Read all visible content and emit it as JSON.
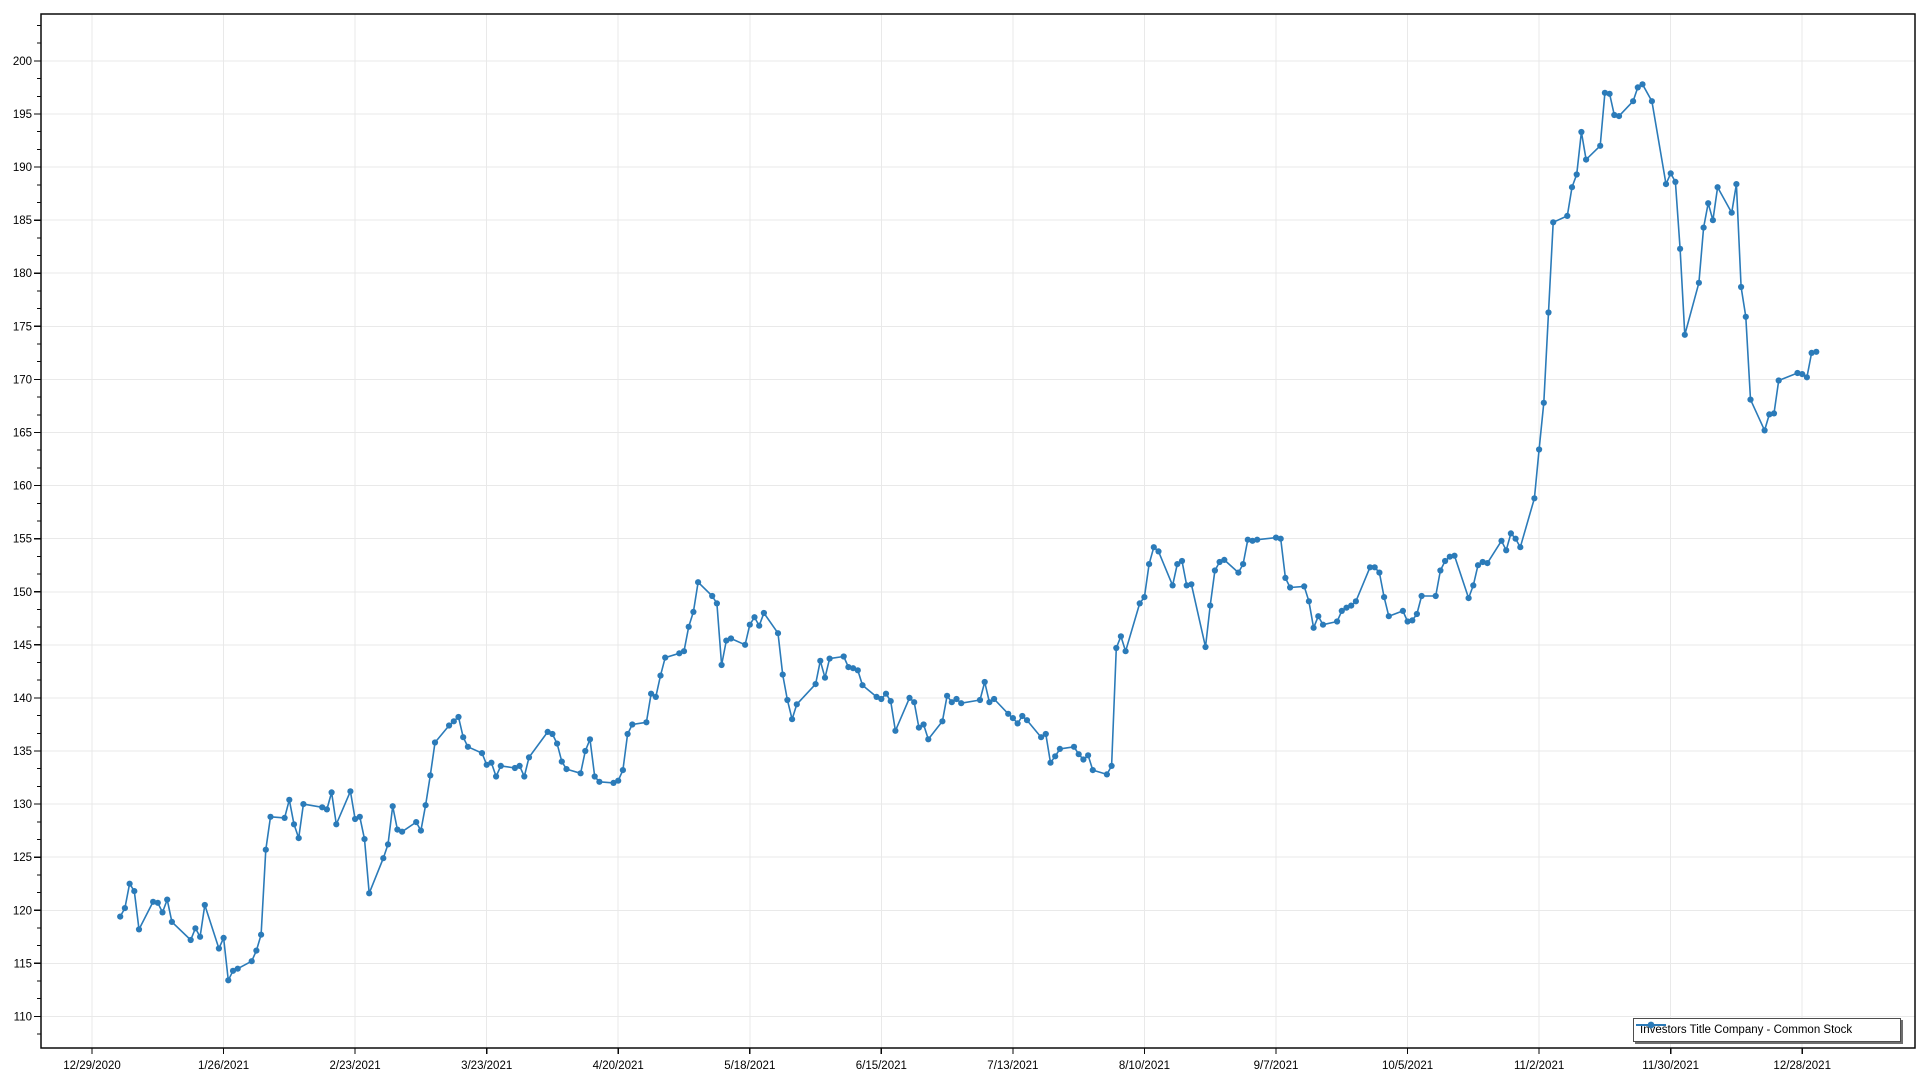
{
  "legend": {
    "label": "Investors Title Company - Common Stock"
  },
  "colors": {
    "series": "#2B7BB9",
    "grid": "#E9E9E9",
    "axis": "#0A0A0A",
    "text": "#000000",
    "legend_border": "#4D4D4D",
    "legend_shadow": "#6E6E6E",
    "background": "#FFFFFF"
  },
  "chart_data": {
    "type": "line",
    "title": "",
    "xlabel": "",
    "ylabel": "",
    "grid": "both",
    "legend_position": "bottom-right",
    "x_origin_date": "12/29/2020",
    "x_tick_labels": [
      "12/29/2020",
      "1/26/2021",
      "2/23/2021",
      "3/23/2021",
      "4/20/2021",
      "5/18/2021",
      "6/15/2021",
      "7/13/2021",
      "8/10/2021",
      "9/7/2021",
      "10/5/2021",
      "11/2/2021",
      "11/30/2021",
      "12/28/2021"
    ],
    "y_ticks": [
      110,
      115,
      120,
      125,
      130,
      135,
      140,
      145,
      150,
      155,
      160,
      165,
      170,
      175,
      180,
      185,
      190,
      195,
      200
    ],
    "ylim": [
      107.0,
      204.4
    ],
    "xlim_days": [
      -10.9,
      388
    ],
    "series": [
      {
        "name": "Investors Title Company - Common Stock",
        "marker": "circle",
        "dates": [
          "1/4/2021",
          "1/5/2021",
          "1/6/2021",
          "1/7/2021",
          "1/8/2021",
          "1/11/2021",
          "1/12/2021",
          "1/13/2021",
          "1/14/2021",
          "1/15/2021",
          "1/19/2021",
          "1/20/2021",
          "1/21/2021",
          "1/22/2021",
          "1/25/2021",
          "1/26/2021",
          "1/27/2021",
          "1/28/2021",
          "1/29/2021",
          "2/1/2021",
          "2/2/2021",
          "2/3/2021",
          "2/4/2021",
          "2/5/2021",
          "2/8/2021",
          "2/9/2021",
          "2/10/2021",
          "2/11/2021",
          "2/12/2021",
          "2/16/2021",
          "2/17/2021",
          "2/18/2021",
          "2/19/2021",
          "2/22/2021",
          "2/23/2021",
          "2/24/2021",
          "2/25/2021",
          "2/26/2021",
          "3/1/2021",
          "3/2/2021",
          "3/3/2021",
          "3/4/2021",
          "3/5/2021",
          "3/8/2021",
          "3/9/2021",
          "3/10/2021",
          "3/11/2021",
          "3/12/2021",
          "3/15/2021",
          "3/16/2021",
          "3/17/2021",
          "3/18/2021",
          "3/19/2021",
          "3/22/2021",
          "3/23/2021",
          "3/24/2021",
          "3/25/2021",
          "3/26/2021",
          "3/29/2021",
          "3/30/2021",
          "3/31/2021",
          "4/1/2021",
          "4/5/2021",
          "4/6/2021",
          "4/7/2021",
          "4/8/2021",
          "4/9/2021",
          "4/12/2021",
          "4/13/2021",
          "4/14/2021",
          "4/15/2021",
          "4/16/2021",
          "4/19/2021",
          "4/20/2021",
          "4/21/2021",
          "4/22/2021",
          "4/23/2021",
          "4/26/2021",
          "4/27/2021",
          "4/28/2021",
          "4/29/2021",
          "4/30/2021",
          "5/3/2021",
          "5/4/2021",
          "5/5/2021",
          "5/6/2021",
          "5/7/2021",
          "5/10/2021",
          "5/11/2021",
          "5/12/2021",
          "5/13/2021",
          "5/14/2021",
          "5/17/2021",
          "5/18/2021",
          "5/19/2021",
          "5/20/2021",
          "5/21/2021",
          "5/24/2021",
          "5/25/2021",
          "5/26/2021",
          "5/27/2021",
          "5/28/2021",
          "6/1/2021",
          "6/2/2021",
          "6/3/2021",
          "6/4/2021",
          "6/7/2021",
          "6/8/2021",
          "6/9/2021",
          "6/10/2021",
          "6/11/2021",
          "6/14/2021",
          "6/15/2021",
          "6/16/2021",
          "6/17/2021",
          "6/18/2021",
          "6/21/2021",
          "6/22/2021",
          "6/23/2021",
          "6/24/2021",
          "6/25/2021",
          "6/28/2021",
          "6/29/2021",
          "6/30/2021",
          "7/1/2021",
          "7/2/2021",
          "7/6/2021",
          "7/7/2021",
          "7/8/2021",
          "7/9/2021",
          "7/12/2021",
          "7/13/2021",
          "7/14/2021",
          "7/15/2021",
          "7/16/2021",
          "7/19/2021",
          "7/20/2021",
          "7/21/2021",
          "7/22/2021",
          "7/23/2021",
          "7/26/2021",
          "7/27/2021",
          "7/28/2021",
          "7/29/2021",
          "7/30/2021",
          "8/2/2021",
          "8/3/2021",
          "8/4/2021",
          "8/5/2021",
          "8/6/2021",
          "8/9/2021",
          "8/10/2021",
          "8/11/2021",
          "8/12/2021",
          "8/13/2021",
          "8/16/2021",
          "8/17/2021",
          "8/18/2021",
          "8/19/2021",
          "8/20/2021",
          "8/23/2021",
          "8/24/2021",
          "8/25/2021",
          "8/26/2021",
          "8/27/2021",
          "8/30/2021",
          "8/31/2021",
          "9/1/2021",
          "9/2/2021",
          "9/3/2021",
          "9/7/2021",
          "9/8/2021",
          "9/9/2021",
          "9/10/2021",
          "9/13/2021",
          "9/14/2021",
          "9/15/2021",
          "9/16/2021",
          "9/17/2021",
          "9/20/2021",
          "9/21/2021",
          "9/22/2021",
          "9/23/2021",
          "9/24/2021",
          "9/27/2021",
          "9/28/2021",
          "9/29/2021",
          "9/30/2021",
          "10/1/2021",
          "10/4/2021",
          "10/5/2021",
          "10/6/2021",
          "10/7/2021",
          "10/8/2021",
          "10/11/2021",
          "10/12/2021",
          "10/13/2021",
          "10/14/2021",
          "10/15/2021",
          "10/18/2021",
          "10/19/2021",
          "10/20/2021",
          "10/21/2021",
          "10/22/2021",
          "10/25/2021",
          "10/26/2021",
          "10/27/2021",
          "10/28/2021",
          "10/29/2021",
          "11/1/2021",
          "11/2/2021",
          "11/3/2021",
          "11/4/2021",
          "11/5/2021",
          "11/8/2021",
          "11/9/2021",
          "11/10/2021",
          "11/11/2021",
          "11/12/2021",
          "11/15/2021",
          "11/16/2021",
          "11/17/2021",
          "11/18/2021",
          "11/19/2021",
          "11/22/2021",
          "11/23/2021",
          "11/24/2021",
          "11/26/2021",
          "11/29/2021",
          "11/30/2021",
          "12/1/2021",
          "12/2/2021",
          "12/3/2021",
          "12/6/2021",
          "12/7/2021",
          "12/8/2021",
          "12/9/2021",
          "12/10/2021",
          "12/13/2021",
          "12/14/2021",
          "12/15/2021",
          "12/16/2021",
          "12/17/2021",
          "12/20/2021",
          "12/21/2021",
          "12/22/2021",
          "12/23/2021",
          "12/27/2021",
          "12/28/2021",
          "12/29/2021",
          "12/30/2021",
          "12/31/2021"
        ],
        "values": [
          119.4,
          120.2,
          122.5,
          121.8,
          118.2,
          120.8,
          120.7,
          119.8,
          121.0,
          118.9,
          117.2,
          118.3,
          117.5,
          120.5,
          116.4,
          117.4,
          113.4,
          114.3,
          114.5,
          115.2,
          116.2,
          117.7,
          125.7,
          128.8,
          128.7,
          130.4,
          128.1,
          126.8,
          130.0,
          129.7,
          129.5,
          131.1,
          128.1,
          131.2,
          128.6,
          128.8,
          126.7,
          121.6,
          124.9,
          126.2,
          129.8,
          127.6,
          127.4,
          128.3,
          127.5,
          129.9,
          132.7,
          135.8,
          137.4,
          137.8,
          138.2,
          136.3,
          135.4,
          134.8,
          133.7,
          133.9,
          132.6,
          133.6,
          133.4,
          133.6,
          132.6,
          134.4,
          136.8,
          136.6,
          135.7,
          134.0,
          133.3,
          132.9,
          135.0,
          136.1,
          132.6,
          132.1,
          132.0,
          132.2,
          133.2,
          136.6,
          137.5,
          137.7,
          140.4,
          140.1,
          142.1,
          143.8,
          144.2,
          144.4,
          146.7,
          148.1,
          150.9,
          149.6,
          148.9,
          143.1,
          145.4,
          145.6,
          145.0,
          146.9,
          147.6,
          146.8,
          148.0,
          146.1,
          142.2,
          139.8,
          138.0,
          139.4,
          141.3,
          143.5,
          141.9,
          143.7,
          143.9,
          142.9,
          142.8,
          142.6,
          141.2,
          140.1,
          139.9,
          140.4,
          139.7,
          136.9,
          140.0,
          139.6,
          137.2,
          137.5,
          136.1,
          137.8,
          140.2,
          139.6,
          139.9,
          139.5,
          139.8,
          141.5,
          139.6,
          139.9,
          138.5,
          138.1,
          137.6,
          138.3,
          137.9,
          136.3,
          136.6,
          133.9,
          134.5,
          135.2,
          135.4,
          134.7,
          134.2,
          134.6,
          133.2,
          132.8,
          133.6,
          144.7,
          145.8,
          144.4,
          148.9,
          149.5,
          152.6,
          154.2,
          153.8,
          150.6,
          152.6,
          152.9,
          150.6,
          150.7,
          144.8,
          148.7,
          152.0,
          152.8,
          153.0,
          151.8,
          152.6,
          154.9,
          154.8,
          154.9,
          155.1,
          155.0,
          151.3,
          150.4,
          150.5,
          149.1,
          146.6,
          147.7,
          146.9,
          147.2,
          148.2,
          148.5,
          148.7,
          149.1,
          152.3,
          152.3,
          151.8,
          149.5,
          147.7,
          148.2,
          147.2,
          147.3,
          147.9,
          149.6,
          149.6,
          152.0,
          152.9,
          153.3,
          153.4,
          149.4,
          150.6,
          152.5,
          152.8,
          152.7,
          154.8,
          153.9,
          155.5,
          155.0,
          154.2,
          158.8,
          163.4,
          167.8,
          176.3,
          184.8,
          185.4,
          188.1,
          189.3,
          193.3,
          190.7,
          192.0,
          197.0,
          196.9,
          194.9,
          194.8,
          196.2,
          197.5,
          197.8,
          196.2,
          188.4,
          189.4,
          188.6,
          182.3,
          174.2,
          179.1,
          184.3,
          186.6,
          185.0,
          188.1,
          185.7,
          188.4,
          178.7,
          175.9,
          168.1,
          165.2,
          166.7,
          166.8,
          169.9,
          170.6,
          170.5,
          170.2,
          172.5,
          172.6
        ]
      }
    ]
  }
}
